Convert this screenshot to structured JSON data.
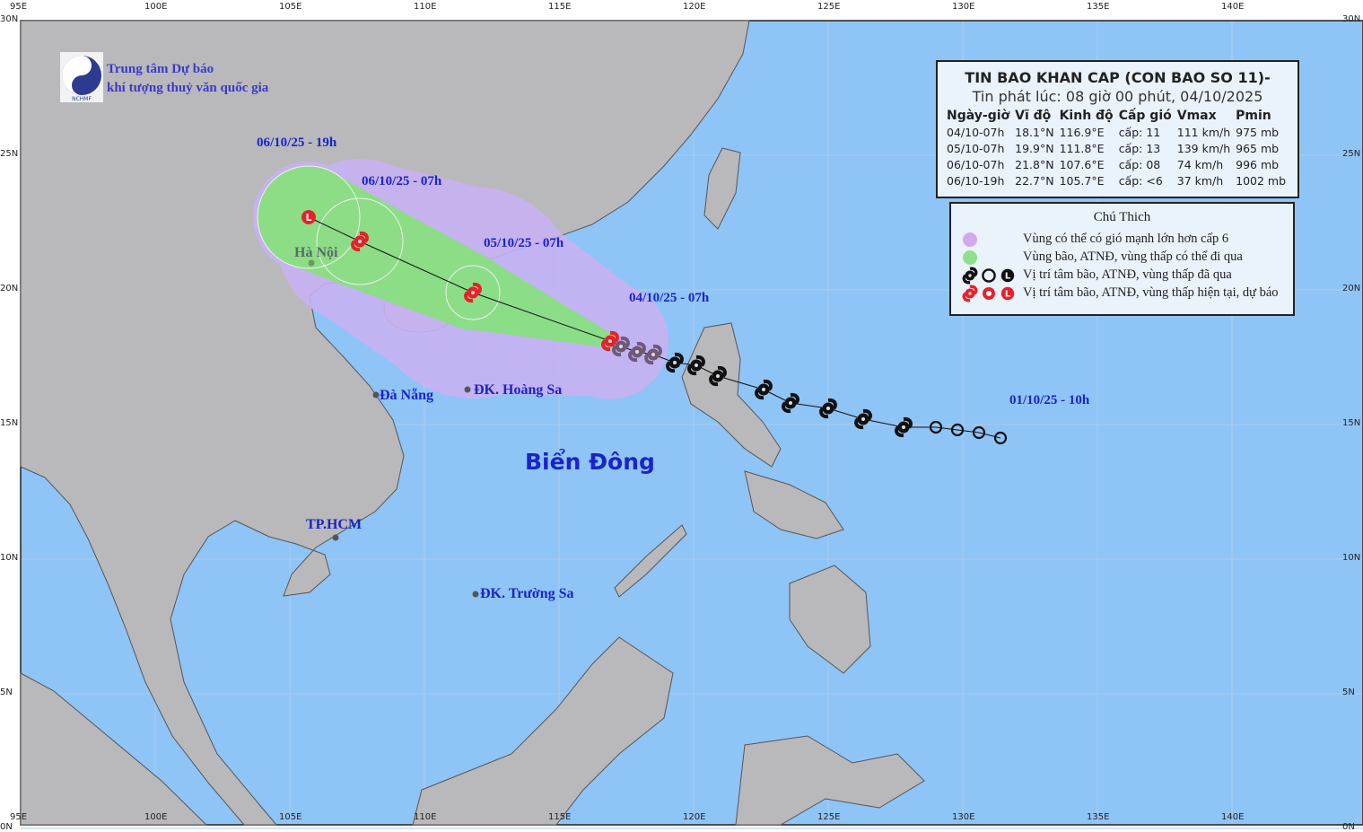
{
  "organization": {
    "line1": "Trung tâm Dự báo",
    "line2": "khí tượng thuỷ văn quốc gia",
    "logo_text": "NCHMF"
  },
  "bulletin": {
    "title": "TIN BAO KHAN CAP (CON BAO SO 11)-",
    "issued": "Tin phát lúc: 08 giờ 00 phút, 04/10/2025",
    "columns": [
      "Ngày-giờ",
      "Vĩ độ",
      "Kinh độ",
      "Cấp gió",
      "Vmax",
      "Pmin"
    ],
    "rows": [
      [
        "04/10-07h",
        "18.1°N",
        "116.9°E",
        "cấp: 11",
        "111 km/h",
        "975 mb"
      ],
      [
        "05/10-07h",
        "19.9°N",
        "111.8°E",
        "cấp: 13",
        "139 km/h",
        "965 mb"
      ],
      [
        "06/10-07h",
        "21.8°N",
        "107.6°E",
        "cấp: 08",
        "74 km/h",
        "996 mb"
      ],
      [
        "06/10-19h",
        "22.7°N",
        "105.7°E",
        "cấp: <6",
        "37 km/h",
        "1002 mb"
      ]
    ]
  },
  "legend": {
    "title": "Chú Thich",
    "items": [
      {
        "text": "Vùng có thể có gió mạnh lớn hơn cấp 6",
        "color": "#d4a8ec"
      },
      {
        "text": "Vùng bão, ATNĐ, vùng thấp có thể đi qua",
        "color": "#8ee08a"
      },
      {
        "text": "Vị trí tâm bão, ATNĐ, vùng thấp đã qua",
        "color": "#1a1a1a"
      },
      {
        "text": "Vị trí tâm bão, ATNĐ, vùng thấp hiện tại, dự báo",
        "color": "#e8202a"
      }
    ]
  },
  "map": {
    "sea_label": "Biển Đông",
    "colors": {
      "sea": "#8fc4f7",
      "land": "#b9b9bb",
      "strong_wind_zone": "#c8b2f2",
      "storm_zone": "#86e27c",
      "current": "#e8202a",
      "past": "#111111",
      "interp": "#6e5a78"
    },
    "lon_ticks": [
      "95E",
      "100E",
      "105E",
      "110E",
      "115E",
      "120E",
      "125E",
      "130E",
      "135E",
      "140E"
    ],
    "lat_ticks": [
      "0N",
      "5N",
      "10N",
      "15N",
      "20N",
      "25N",
      "30N"
    ],
    "places": [
      {
        "name": "Hà Nội",
        "lat": 21.0,
        "lon": 105.8
      },
      {
        "name": "Đà Nẵng",
        "lat": 16.1,
        "lon": 108.2
      },
      {
        "name": "ĐK. Hoàng Sa",
        "lat": 16.3,
        "lon": 111.6
      },
      {
        "name": "TP.HCM",
        "lat": 10.8,
        "lon": 106.7
      },
      {
        "name": "ĐK. Trường Sa",
        "lat": 8.7,
        "lon": 111.9
      }
    ],
    "time_labels": [
      "06/10/25 - 19h",
      "06/10/25 - 07h",
      "05/10/25 - 07h",
      "04/10/25 - 07h",
      "01/10/25 - 10h"
    ],
    "forecast_track": [
      {
        "time": "04/10-07h",
        "lat": 18.1,
        "lon": 116.9,
        "symbol": "storm"
      },
      {
        "time": "05/10-07h",
        "lat": 19.9,
        "lon": 111.8,
        "symbol": "storm"
      },
      {
        "time": "06/10-07h",
        "lat": 21.8,
        "lon": 107.6,
        "symbol": "storm"
      },
      {
        "time": "06/10-19h",
        "lat": 22.7,
        "lon": 105.7,
        "symbol": "low"
      }
    ],
    "past_track": [
      {
        "lat": 17.9,
        "lon": 117.3,
        "symbol": "storm-interp"
      },
      {
        "lat": 17.7,
        "lon": 117.9,
        "symbol": "storm-interp"
      },
      {
        "lat": 17.6,
        "lon": 118.5,
        "symbol": "storm-interp"
      },
      {
        "lat": 17.3,
        "lon": 119.3,
        "symbol": "storm"
      },
      {
        "lat": 17.2,
        "lon": 120.1,
        "symbol": "storm"
      },
      {
        "lat": 16.8,
        "lon": 120.9,
        "symbol": "storm"
      },
      {
        "lat": 16.3,
        "lon": 122.6,
        "symbol": "storm"
      },
      {
        "lat": 15.8,
        "lon": 123.6,
        "symbol": "storm"
      },
      {
        "lat": 15.6,
        "lon": 125.0,
        "symbol": "storm"
      },
      {
        "lat": 15.2,
        "lon": 126.3,
        "symbol": "storm"
      },
      {
        "lat": 14.9,
        "lon": 127.8,
        "symbol": "storm"
      },
      {
        "lat": 14.9,
        "lon": 129.0,
        "symbol": "depression"
      },
      {
        "lat": 14.8,
        "lon": 129.8,
        "symbol": "depression"
      },
      {
        "lat": 14.7,
        "lon": 130.6,
        "symbol": "depression"
      },
      {
        "lat": 14.5,
        "lon": 131.4,
        "symbol": "depression"
      }
    ]
  }
}
